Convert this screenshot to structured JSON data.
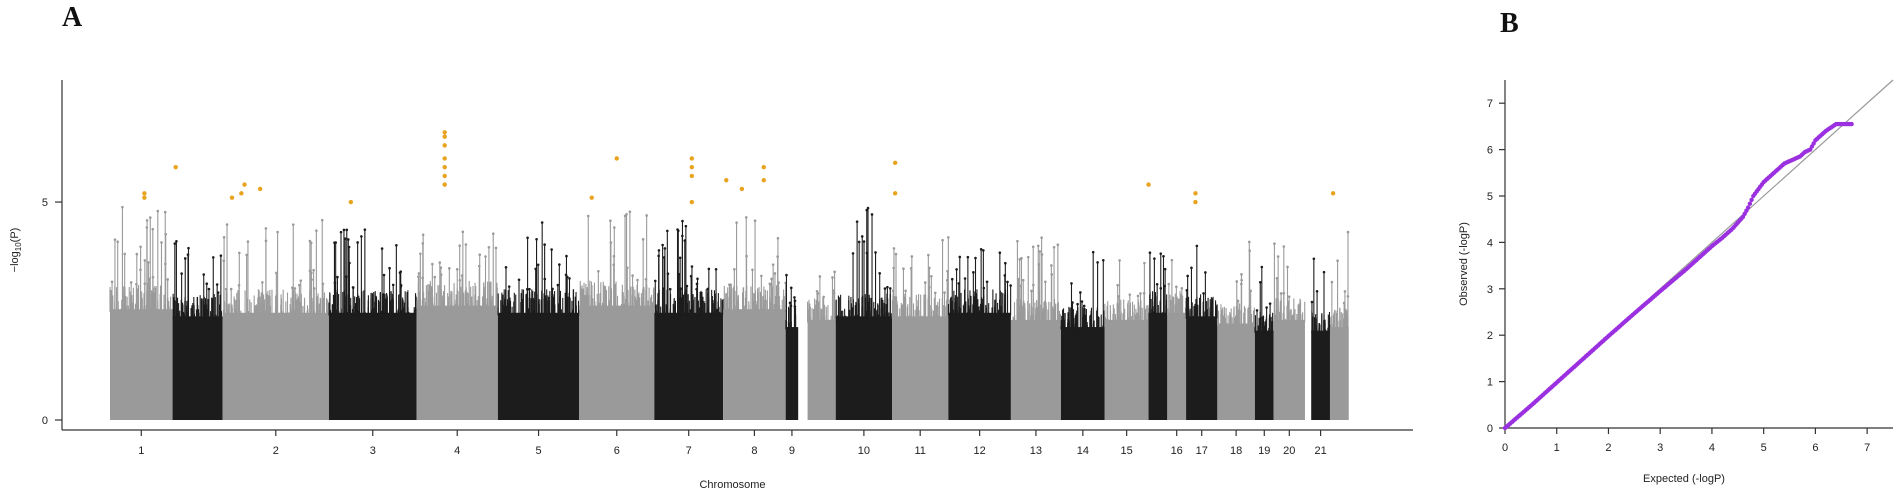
{
  "panels": {
    "a_label": "A",
    "b_label": "B"
  },
  "colors": {
    "chr_dark": "#1c1c1c",
    "chr_light": "#9a9a9a",
    "highlight": "#e8a31f",
    "qq_points": "#9b30e0",
    "qq_line": "#999999"
  },
  "chart_data": [
    {
      "type": "scatter",
      "subtype": "manhattan",
      "title": "",
      "xlabel": "Chromosome",
      "ylabel": "-log10(P)",
      "ylabel_parts": {
        "prefix": "−log",
        "sub": "10",
        "suffix": "(P)"
      },
      "ylim": [
        0,
        7.8
      ],
      "yticks": [
        0,
        5
      ],
      "yticks_labels": [
        "0",
        "5"
      ],
      "chromosomes": [
        {
          "label": "1",
          "bulk": 3.1,
          "max": 4.9,
          "span": [
            0,
            1
          ],
          "row": "a"
        },
        {
          "label": "",
          "bulk": 2.9,
          "max": 4.4,
          "span": [
            1,
            1.8
          ],
          "row": "a"
        },
        {
          "label": "2",
          "bulk": 3.0,
          "max": 4.8,
          "span": [
            1.8,
            3.5
          ],
          "row": "a"
        },
        {
          "label": "3",
          "bulk": 3.0,
          "max": 4.4,
          "span": [
            3.5,
            4.9
          ],
          "row": "a"
        },
        {
          "label": "4",
          "bulk": 3.2,
          "max": 4.5,
          "span": [
            4.9,
            6.2
          ],
          "row": "a"
        },
        {
          "label": "5",
          "bulk": 3.0,
          "max": 4.6,
          "span": [
            6.2,
            7.5
          ],
          "row": "a"
        },
        {
          "label": "6",
          "bulk": 3.2,
          "max": 4.8,
          "span": [
            7.5,
            8.7
          ],
          "row": "a"
        },
        {
          "label": "7",
          "bulk": 3.0,
          "max": 4.6,
          "span": [
            8.7,
            9.8
          ],
          "row": "a"
        },
        {
          "label": "8",
          "bulk": 3.1,
          "max": 4.7,
          "span": [
            9.8,
            10.8
          ],
          "row": "a"
        },
        {
          "label": "9",
          "bulk": 2.6,
          "max": 3.4,
          "span": [
            10.8,
            11.0
          ],
          "row": "a"
        },
        {
          "label": "",
          "bulk": 2.8,
          "max": 3.9,
          "span": [
            11.15,
            11.6
          ],
          "row": "a"
        },
        {
          "label": "10",
          "bulk": 2.9,
          "max": 4.9,
          "span": [
            11.6,
            12.5
          ],
          "row": "a"
        },
        {
          "label": "11",
          "bulk": 2.9,
          "max": 4.2,
          "span": [
            12.5,
            13.4
          ],
          "row": "a"
        },
        {
          "label": "12",
          "bulk": 3.0,
          "max": 4.1,
          "span": [
            13.4,
            14.4
          ],
          "row": "a"
        },
        {
          "label": "13",
          "bulk": 2.8,
          "max": 4.2,
          "span": [
            14.4,
            15.2
          ],
          "row": "a"
        },
        {
          "label": "14",
          "bulk": 2.6,
          "max": 4.5,
          "span": [
            15.2,
            15.9
          ],
          "row": "a"
        },
        {
          "label": "15",
          "bulk": 2.8,
          "max": 4.0,
          "span": [
            15.9,
            16.6
          ],
          "row": "a"
        },
        {
          "label": "",
          "bulk": 3.0,
          "max": 4.1,
          "span": [
            16.6,
            16.9
          ],
          "row": "a"
        },
        {
          "label": "16",
          "bulk": 3.0,
          "max": 4.2,
          "span": [
            16.9,
            17.2
          ],
          "row": "a"
        },
        {
          "label": "17",
          "bulk": 2.9,
          "max": 4.1,
          "span": [
            17.2,
            17.7
          ],
          "row": "a"
        },
        {
          "label": "18",
          "bulk": 2.7,
          "max": 4.5,
          "span": [
            17.7,
            18.3
          ],
          "row": "a"
        },
        {
          "label": "19",
          "bulk": 2.5,
          "max": 3.6,
          "span": [
            18.3,
            18.6
          ],
          "row": "a"
        },
        {
          "label": "20",
          "bulk": 2.8,
          "max": 4.3,
          "span": [
            18.6,
            19.1
          ],
          "row": "a"
        },
        {
          "label": "21",
          "bulk": 2.5,
          "max": 3.8,
          "span": [
            19.2,
            19.5
          ],
          "row": "a"
        },
        {
          "label": "",
          "bulk": 2.6,
          "max": 4.6,
          "span": [
            19.5,
            19.8
          ],
          "row": "a"
        }
      ],
      "significant_points": [
        {
          "chr": "1",
          "pos": 0.55,
          "y": 5.1
        },
        {
          "chr": "1",
          "pos": 0.55,
          "y": 5.2
        },
        {
          "chr": "",
          "pos": 1.05,
          "y": 5.8
        },
        {
          "chr": "2",
          "pos": 1.95,
          "y": 5.1
        },
        {
          "chr": "2",
          "pos": 2.1,
          "y": 5.2
        },
        {
          "chr": "2",
          "pos": 2.15,
          "y": 5.4
        },
        {
          "chr": "2",
          "pos": 2.4,
          "y": 5.3
        },
        {
          "chr": "3",
          "pos": 3.85,
          "y": 5.0
        },
        {
          "chr": "4",
          "pos": 5.35,
          "y": 5.4
        },
        {
          "chr": "4",
          "pos": 5.35,
          "y": 5.6
        },
        {
          "chr": "4",
          "pos": 5.35,
          "y": 5.8
        },
        {
          "chr": "4",
          "pos": 5.35,
          "y": 6.0
        },
        {
          "chr": "4",
          "pos": 5.35,
          "y": 6.3
        },
        {
          "chr": "4",
          "pos": 5.35,
          "y": 6.5
        },
        {
          "chr": "4",
          "pos": 5.35,
          "y": 6.6
        },
        {
          "chr": "6",
          "pos": 7.7,
          "y": 5.1
        },
        {
          "chr": "6",
          "pos": 8.1,
          "y": 6.0
        },
        {
          "chr": "7",
          "pos": 9.3,
          "y": 5.0
        },
        {
          "chr": "7",
          "pos": 9.3,
          "y": 5.6
        },
        {
          "chr": "7",
          "pos": 9.3,
          "y": 5.8
        },
        {
          "chr": "7",
          "pos": 9.3,
          "y": 6.0
        },
        {
          "chr": "8",
          "pos": 9.85,
          "y": 5.5
        },
        {
          "chr": "8",
          "pos": 10.1,
          "y": 5.3
        },
        {
          "chr": "8",
          "pos": 10.45,
          "y": 5.8
        },
        {
          "chr": "8",
          "pos": 10.45,
          "y": 5.5
        },
        {
          "chr": "10",
          "pos": 12.55,
          "y": 5.9
        },
        {
          "chr": "10",
          "pos": 12.55,
          "y": 5.2
        },
        {
          "chr": "15",
          "pos": 16.6,
          "y": 5.4
        },
        {
          "chr": "17",
          "pos": 17.35,
          "y": 5.0
        },
        {
          "chr": "17",
          "pos": 17.35,
          "y": 5.2
        },
        {
          "chr": "21",
          "pos": 19.55,
          "y": 5.2
        }
      ]
    },
    {
      "type": "scatter",
      "subtype": "qq",
      "title": "",
      "xlabel": "Expected (-logP)",
      "ylabel": "Observed (-logP)",
      "xlim": [
        0,
        7.5
      ],
      "ylim": [
        0,
        7.5
      ],
      "xticks": [
        0,
        1,
        2,
        3,
        4,
        5,
        6,
        7
      ],
      "yticks": [
        0,
        1,
        2,
        3,
        4,
        5,
        6,
        7
      ],
      "reference_line": "y = x",
      "points": [
        [
          0.0,
          0.0
        ],
        [
          0.5,
          0.48
        ],
        [
          1.0,
          0.98
        ],
        [
          1.5,
          1.48
        ],
        [
          2.0,
          1.98
        ],
        [
          2.5,
          2.47
        ],
        [
          3.0,
          2.95
        ],
        [
          3.5,
          3.42
        ],
        [
          3.8,
          3.72
        ],
        [
          4.0,
          3.92
        ],
        [
          4.2,
          4.1
        ],
        [
          4.4,
          4.3
        ],
        [
          4.6,
          4.55
        ],
        [
          4.7,
          4.75
        ],
        [
          4.8,
          5.0
        ],
        [
          4.9,
          5.15
        ],
        [
          5.0,
          5.3
        ],
        [
          5.1,
          5.4
        ],
        [
          5.2,
          5.5
        ],
        [
          5.3,
          5.6
        ],
        [
          5.4,
          5.7
        ],
        [
          5.5,
          5.75
        ],
        [
          5.6,
          5.8
        ],
        [
          5.7,
          5.85
        ],
        [
          5.8,
          5.95
        ],
        [
          5.9,
          6.0
        ],
        [
          6.0,
          6.2
        ],
        [
          6.2,
          6.4
        ],
        [
          6.4,
          6.55
        ],
        [
          6.7,
          6.55
        ]
      ]
    }
  ]
}
